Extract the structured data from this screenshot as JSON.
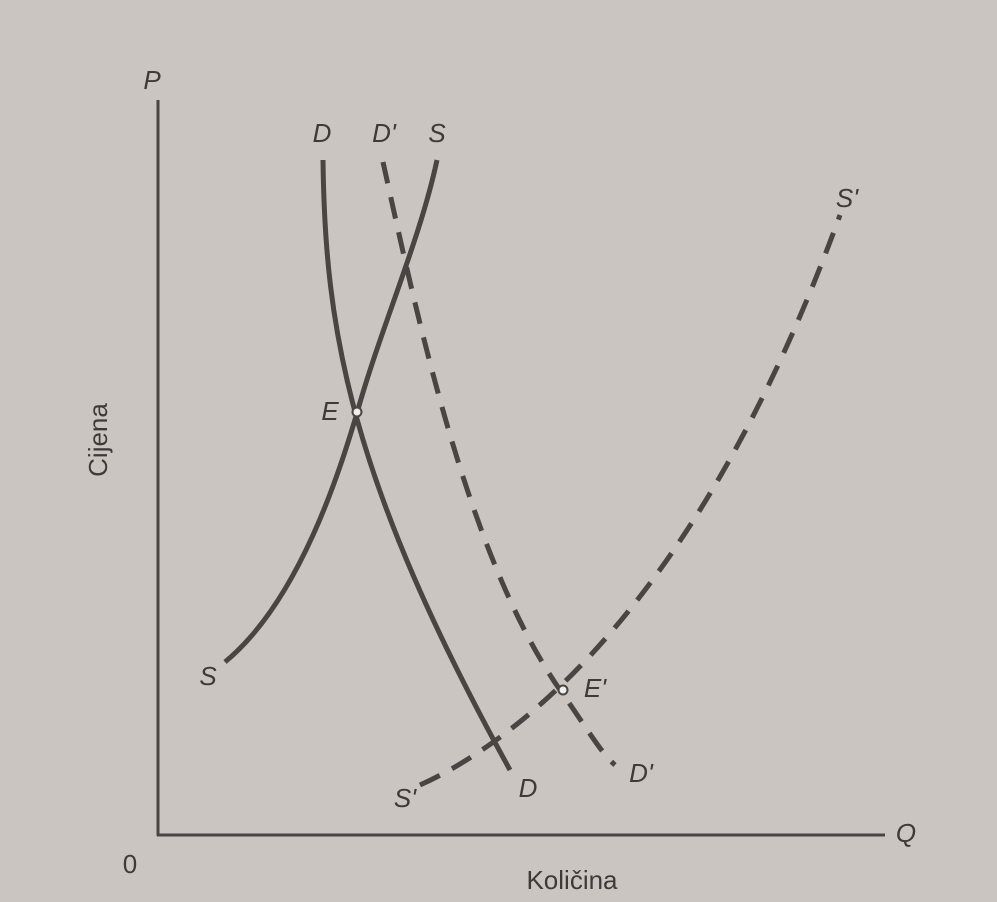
{
  "axes": {
    "y_label": "P",
    "x_label": "Q",
    "origin": "0",
    "y_title": "Cijena",
    "x_title": "Količina"
  },
  "curves": {
    "demand": {
      "top": "D",
      "bottom": "D"
    },
    "demand_shifted": {
      "top": "D'",
      "bottom": "D'"
    },
    "supply": {
      "top": "S",
      "bottom": "S"
    },
    "supply_shifted": {
      "top": "S'",
      "bottom": "S'"
    }
  },
  "points": {
    "equilibrium": "E",
    "equilibrium_shifted": "E'"
  }
}
